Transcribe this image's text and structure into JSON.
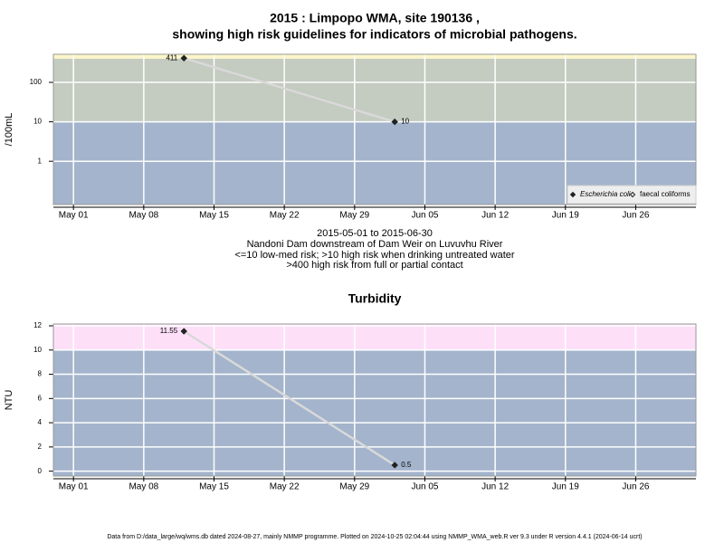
{
  "footer": "Data from D:/data_large/wq/wms.db dated 2024-08-27, mainly NMMP programme. Plotted on 2024-10-25 02:04:44 using NMMP_WMA_web.R ver 9.3 under R version 4.4.1 (2024-06-14 ucrt)",
  "chart_data": [
    {
      "type": "line",
      "title": [
        "2015 : Limpopo WMA, site 190136 ,",
        "showing high risk guidelines for indicators of microbial pathogens."
      ],
      "notes": [
        "2015-05-01 to 2015-06-30",
        "Nandoni Dam downstream of Dam Weir on Luvuvhu River",
        "<=10 low-med risk; >10 high risk when drinking untreated water",
        ">400 high risk from full or partial contact"
      ],
      "y_label": "/100mL",
      "x": [
        "2015-05-12",
        "2015-06-02"
      ],
      "series": [
        {
          "name": "Escherichia coli",
          "color": "#222222",
          "marker": "diamond",
          "values": [
            411,
            10
          ]
        },
        {
          "name": "faecal coliforms",
          "color": "#222222",
          "marker": "open-diamond",
          "values": [
            null,
            null
          ]
        }
      ],
      "line_color": "#d9d9d9",
      "log_y": true,
      "ylim": [
        0.08,
        515
      ],
      "yticks": [
        1,
        10,
        100
      ],
      "xlim": [
        "2015-04-29",
        "2015-07-02"
      ],
      "xticks": [
        {
          "value": "2015-05-01",
          "label": "May 01"
        },
        {
          "value": "2015-05-08",
          "label": "May 08"
        },
        {
          "value": "2015-05-15",
          "label": "May 15"
        },
        {
          "value": "2015-05-22",
          "label": "May 22"
        },
        {
          "value": "2015-05-29",
          "label": "May 29"
        },
        {
          "value": "2015-06-05",
          "label": "Jun 05"
        },
        {
          "value": "2015-06-12",
          "label": "Jun 12"
        },
        {
          "value": "2015-06-19",
          "label": "Jun 19"
        },
        {
          "value": "2015-06-26",
          "label": "Jun 26"
        }
      ],
      "thresholds": [
        10,
        400
      ],
      "band_colors": [
        "#a3b4cc",
        "#c4cbc0",
        "#fdf6c8"
      ],
      "grid": true,
      "legend": "lower right"
    },
    {
      "type": "line",
      "title": "Turbidity",
      "y_label": "NTU",
      "x": [
        "2015-05-12",
        "2015-06-02"
      ],
      "series": [
        {
          "color": "#222222",
          "marker": "diamond",
          "values": [
            11.55,
            0.5
          ]
        }
      ],
      "line_color": "#d9d9d9",
      "log_y": false,
      "ylim": [
        -0.4,
        12.15
      ],
      "yticks": [
        0,
        2,
        4,
        6,
        8,
        10,
        12
      ],
      "xlim": [
        "2015-04-29",
        "2015-07-02"
      ],
      "xticks": [
        {
          "value": "2015-05-01",
          "label": "May 01"
        },
        {
          "value": "2015-05-08",
          "label": "May 08"
        },
        {
          "value": "2015-05-15",
          "label": "May 15"
        },
        {
          "value": "2015-05-22",
          "label": "May 22"
        },
        {
          "value": "2015-05-29",
          "label": "May 29"
        },
        {
          "value": "2015-06-05",
          "label": "Jun 05"
        },
        {
          "value": "2015-06-12",
          "label": "Jun 12"
        },
        {
          "value": "2015-06-19",
          "label": "Jun 19"
        },
        {
          "value": "2015-06-26",
          "label": "Jun 26"
        }
      ],
      "thresholds": [
        10
      ],
      "band_colors": [
        "#a3b4cc",
        "#fde0f8"
      ],
      "grid": true
    }
  ]
}
